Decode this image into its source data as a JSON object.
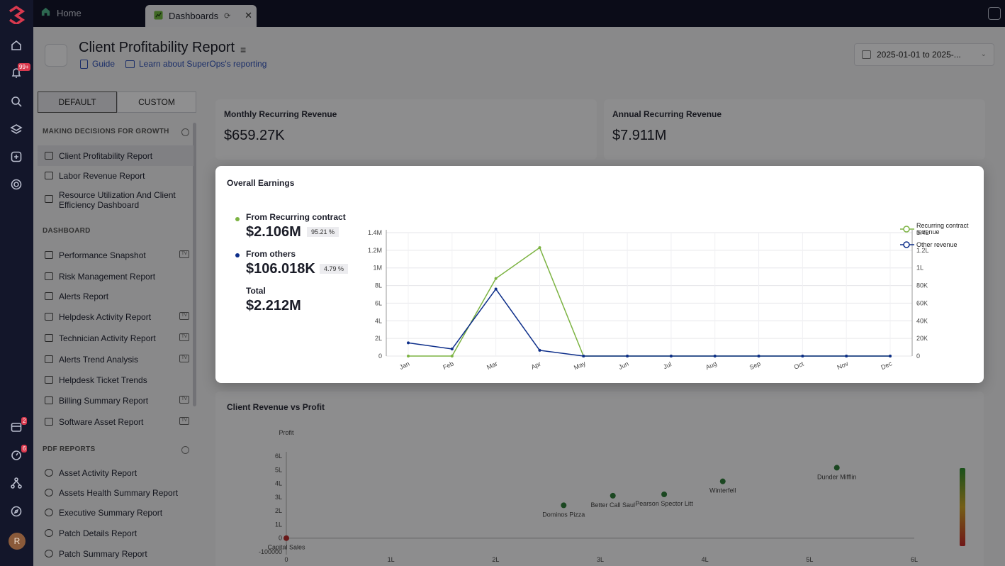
{
  "app": {
    "brand_color": "#d9394e"
  },
  "rail": {
    "notif_badge": "99+",
    "calendar_badge": "2",
    "timer_badge": "6",
    "avatar_initial": "R"
  },
  "tabs": {
    "home": "Home",
    "dashboards": "Dashboards"
  },
  "header": {
    "title": "Client Profitability Report",
    "guide": "Guide",
    "learn": "Learn about SuperOps's reporting",
    "date_range": "2025-01-01 to 2025-..."
  },
  "sidebar": {
    "seg_default": "DEFAULT",
    "seg_custom": "CUSTOM",
    "sec1": "MAKING DECISIONS FOR GROWTH",
    "sec2": "DASHBOARD",
    "sec3": "PDF REPORTS",
    "items1": [
      "Client Profitability Report",
      "Labor Revenue Report",
      "Resource Utilization And Client Efficiency Dashboard"
    ],
    "items2": [
      "Performance Snapshot",
      "Risk Management Report",
      "Alerts Report",
      "Helpdesk Activity Report",
      "Technician Activity Report",
      "Alerts Trend Analysis",
      "Helpdesk Ticket Trends",
      "Billing Summary Report",
      "Software Asset Report"
    ],
    "items3": [
      "Asset Activity Report",
      "Assets Health Summary Report",
      "Executive Summary Report",
      "Patch Details Report",
      "Patch Summary Report"
    ],
    "tv_label": "TV"
  },
  "cards": {
    "mrr_label": "Monthly Recurring Revenue",
    "mrr_value": "$659.27K",
    "arr_label": "Annual Recurring Revenue",
    "arr_value": "$7.911M"
  },
  "overall": {
    "title": "Overall Earnings",
    "recurring_label": "From Recurring contract",
    "recurring_value": "$2.106M",
    "recurring_pct": "95.21 %",
    "others_label": "From others",
    "others_value": "$106.018K",
    "others_pct": "4.79 %",
    "total_label": "Total",
    "total_value": "$2.212M",
    "recurring_color": "#7cb342",
    "others_color": "#0d2e8a"
  },
  "chart_data": [
    {
      "type": "line",
      "categories": [
        "Jan",
        "Feb",
        "Mar",
        "Apr",
        "May",
        "Jun",
        "Jul",
        "Aug",
        "Sep",
        "Oct",
        "Nov",
        "Dec"
      ],
      "left_ticks": [
        "0",
        "2L",
        "4L",
        "6L",
        "8L",
        "1M",
        "1.2M",
        "1.4M"
      ],
      "right_ticks": [
        "0",
        "20K",
        "40K",
        "60K",
        "80K",
        "1L",
        "1.2L",
        "1.4L"
      ],
      "ylim": [
        0,
        1400000
      ],
      "ylim_right": [
        0,
        140000
      ],
      "series": [
        {
          "name": "Recurring contract revenue",
          "axis": "left",
          "values": [
            0,
            0,
            880000,
            1230000,
            0,
            0,
            0,
            0,
            0,
            0,
            0,
            0
          ]
        },
        {
          "name": "Other revenue",
          "axis": "right",
          "values": [
            15000,
            8000,
            76000,
            6500,
            0,
            0,
            0,
            0,
            0,
            0,
            0,
            0
          ]
        }
      ],
      "legend_labels": [
        "Recurring contract",
        "revenue",
        "Other revenue"
      ],
      "legend": "top-right"
    },
    {
      "type": "scatter",
      "title": "Client Revenue vs Profit",
      "ylabel": "Profit",
      "x_ticks": [
        "0",
        "1L",
        "2L",
        "3L",
        "4L",
        "5L",
        "6L"
      ],
      "y_ticks": [
        "-100000",
        "0",
        "1L",
        "2L",
        "3L",
        "4L",
        "5L",
        "6L"
      ],
      "xlim": [
        0,
        600000
      ],
      "ylim": [
        -100000,
        600000
      ],
      "points": [
        {
          "label": "Capital Sales",
          "x": 0,
          "y": 0
        },
        {
          "label": "Dominos Pizza",
          "x": 265000,
          "y": 240000
        },
        {
          "label": "Better Call Saul",
          "x": 312000,
          "y": 310000
        },
        {
          "label": "Pearson Spector Litt",
          "x": 361000,
          "y": 320000
        },
        {
          "label": "Winterfell",
          "x": 417000,
          "y": 415000
        },
        {
          "label": "Dunder Mifflin",
          "x": 526000,
          "y": 515000
        }
      ]
    }
  ]
}
